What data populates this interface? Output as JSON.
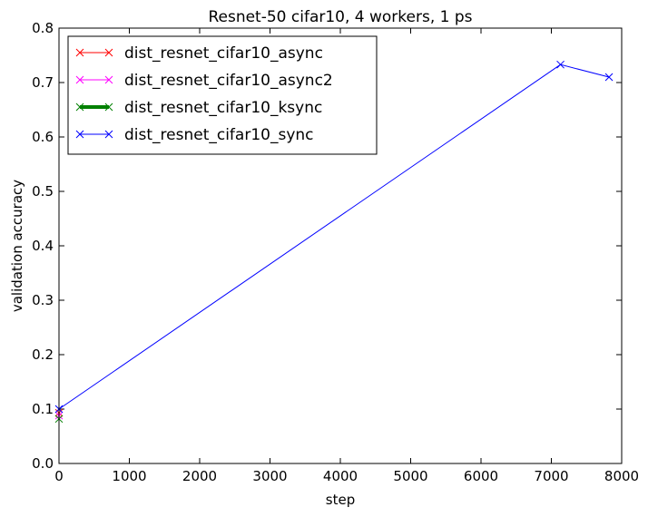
{
  "chart_data": {
    "type": "line",
    "title": "Resnet-50 cifar10, 4 workers, 1 ps",
    "xlabel": "step",
    "ylabel": "validation accuracy",
    "xlim": [
      0,
      8000
    ],
    "ylim": [
      0.0,
      0.8
    ],
    "x_ticks": [
      0,
      1000,
      2000,
      3000,
      4000,
      5000,
      6000,
      7000,
      8000
    ],
    "y_ticks": [
      0.0,
      0.1,
      0.2,
      0.3,
      0.4,
      0.5,
      0.6,
      0.7,
      0.8
    ],
    "x_tick_labels": [
      "0",
      "1000",
      "2000",
      "3000",
      "4000",
      "5000",
      "6000",
      "7000",
      "8000"
    ],
    "y_tick_labels": [
      "0.0",
      "0.1",
      "0.2",
      "0.3",
      "0.4",
      "0.5",
      "0.6",
      "0.7",
      "0.8"
    ],
    "grid": false,
    "legend_position": "top-left",
    "series": [
      {
        "name": "dist_resnet_cifar10_async",
        "color": "#ff0000",
        "line_width": 1,
        "marker": "x",
        "x": [
          0
        ],
        "y": [
          0.093
        ]
      },
      {
        "name": "dist_resnet_cifar10_async2",
        "color": "#ff00ff",
        "line_width": 1,
        "marker": "x",
        "x": [
          0
        ],
        "y": [
          0.088
        ]
      },
      {
        "name": "dist_resnet_cifar10_ksync",
        "color": "#008000",
        "line_width": 4,
        "marker": "x",
        "x": [
          0
        ],
        "y": [
          0.082
        ]
      },
      {
        "name": "dist_resnet_cifar10_sync",
        "color": "#0000ff",
        "line_width": 1,
        "marker": "x",
        "x": [
          0,
          7130,
          7820
        ],
        "y": [
          0.1,
          0.733,
          0.71
        ]
      }
    ]
  }
}
